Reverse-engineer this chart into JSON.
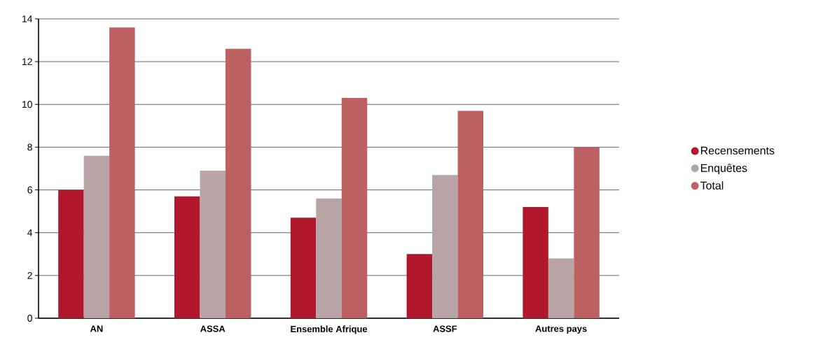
{
  "chart_data": {
    "type": "bar",
    "categories": [
      "AN",
      "ASSA",
      "Ensemble Afrique",
      "ASSF",
      "Autres pays"
    ],
    "series": [
      {
        "name": "Recensements",
        "color": "#b2182b",
        "values": [
          6.0,
          5.7,
          4.7,
          3.0,
          5.2
        ]
      },
      {
        "name": "Enquêtes",
        "color": "#b8a3a5",
        "values": [
          7.6,
          6.9,
          5.6,
          6.7,
          2.8
        ]
      },
      {
        "name": "Total",
        "color": "#bd6061",
        "values": [
          13.6,
          12.6,
          10.3,
          9.7,
          8.0
        ]
      }
    ],
    "ylim": [
      0,
      14
    ],
    "yticks": [
      0,
      2,
      4,
      6,
      8,
      10,
      12,
      14
    ],
    "grid": "y",
    "legend": "right"
  }
}
